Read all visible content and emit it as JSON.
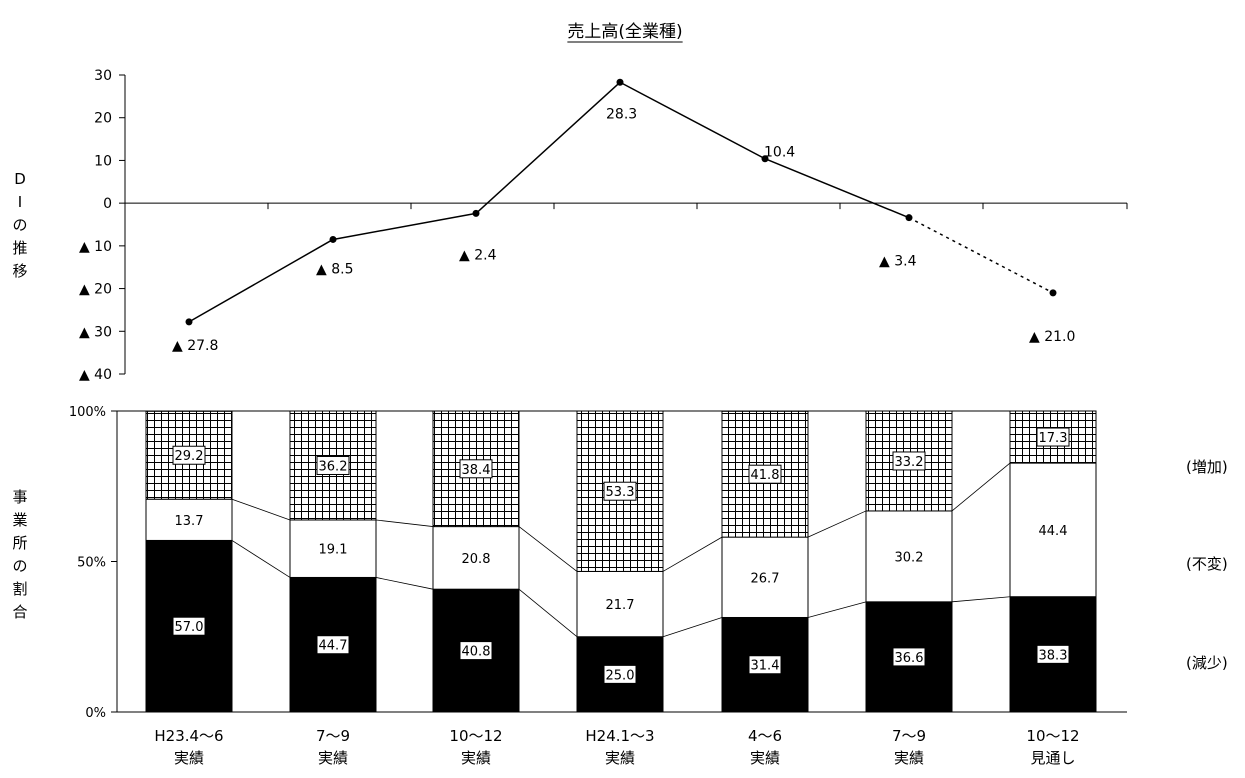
{
  "chart_data": [
    {
      "type": "line",
      "title": "売上高(全業種)",
      "ylabel": "DIの推移",
      "ylim": [
        -40,
        30
      ],
      "yticks": [
        30,
        20,
        10,
        0,
        -10,
        -20,
        -30,
        -40
      ],
      "ytick_labels": [
        "30",
        "20",
        "10",
        "0",
        "▲ 10",
        "▲ 20",
        "▲ 30",
        "▲ 40"
      ],
      "categories": [
        "H23.4〜6\n実績",
        "7〜9\n実績",
        "10〜12\n実績",
        "H24.1〜3\n実績",
        "4〜6\n実績",
        "7〜9\n実績",
        "10〜12\n見通し"
      ],
      "series": [
        {
          "values": [
            -27.8,
            -8.5,
            -2.4,
            28.3,
            10.4,
            -3.4,
            -21.0
          ],
          "labels": [
            "▲ 27.8",
            "▲ 8.5",
            "▲ 2.4",
            "28.3",
            "10.4",
            "▲ 3.4",
            "▲ 21.0"
          ],
          "dashed_last_segment": true
        }
      ],
      "grid": false
    },
    {
      "type": "bar",
      "stacked": true,
      "ylabel": "事業所の割合",
      "ylim": [
        0,
        100
      ],
      "yticks": [
        0,
        50,
        100
      ],
      "ytick_labels": [
        "0%",
        "50%",
        "100%"
      ],
      "categories": [
        "H23.4〜6\n実績",
        "7〜9\n実績",
        "10〜12\n実績",
        "H24.1〜3\n実績",
        "4〜6\n実績",
        "7〜9\n実績",
        "10〜12\n見通し"
      ],
      "category_lines": [
        [
          "H23.4〜6",
          "実績"
        ],
        [
          "7〜9",
          "実績"
        ],
        [
          "10〜12",
          "実績"
        ],
        [
          "H24.1〜3",
          "実績"
        ],
        [
          "4〜6",
          "実績"
        ],
        [
          "7〜9",
          "実績"
        ],
        [
          "10〜12",
          "見通し"
        ]
      ],
      "series": [
        {
          "name": "(減少)",
          "values": [
            57.0,
            44.7,
            40.8,
            25.0,
            31.4,
            36.6,
            38.3
          ],
          "labels": [
            "57.0",
            "44.7",
            "40.8",
            "25.0",
            "31.4",
            "36.6",
            "38.3"
          ],
          "fill": "solid-black"
        },
        {
          "name": "(不変)",
          "values": [
            13.7,
            19.1,
            20.8,
            21.7,
            26.7,
            30.2,
            44.4
          ],
          "labels": [
            "13.7",
            "19.1",
            "20.8",
            "21.7",
            "26.7",
            "30.2",
            "44.4"
          ],
          "fill": "white"
        },
        {
          "name": "(増加)",
          "values": [
            29.2,
            36.2,
            38.4,
            53.3,
            41.8,
            33.2,
            17.3
          ],
          "labels": [
            "29.2",
            "36.2",
            "38.4",
            "53.3",
            "41.8",
            "33.2",
            "17.3"
          ],
          "fill": "grid-pattern"
        }
      ],
      "legend": "right",
      "series_connector_lines": true
    }
  ]
}
